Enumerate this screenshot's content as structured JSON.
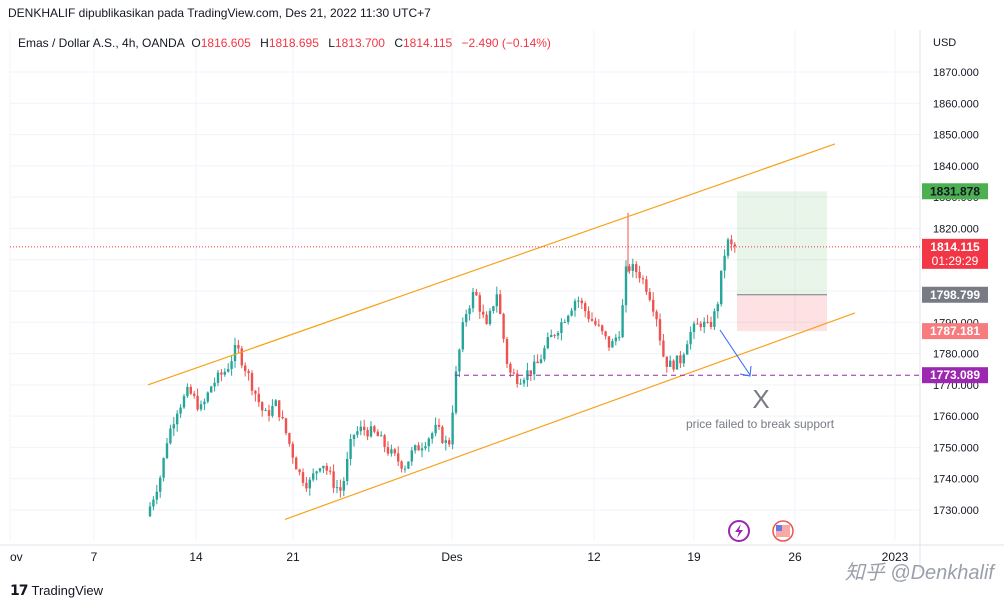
{
  "header": {
    "publisher_line": "DENKHALIF dipublikasikan pada TradingView.com, Des 21, 2022 11:30 UTC+7"
  },
  "symbol": {
    "name": "Emas / Dollar A.S., 4h, OANDA",
    "open_label": "O",
    "open": "1816.605",
    "high_label": "H",
    "high": "1818.695",
    "low_label": "L",
    "low": "1813.700",
    "close_label": "C",
    "close": "1814.115",
    "change": "−2.490 (−0.14%)"
  },
  "chart_data": {
    "type": "candlestick",
    "y_axis": {
      "currency": "USD",
      "range": [
        1724,
        1878
      ],
      "ticks": [
        1730,
        1740,
        1750,
        1760,
        1770,
        1780,
        1790,
        1800,
        1810,
        1820,
        1830,
        1840,
        1850,
        1860,
        1870
      ],
      "tick_labels": [
        "1730.000",
        "1740.000",
        "1750.000",
        "1760.000",
        "1770.000",
        "1780.000",
        "1790.000",
        "1800.000",
        "1810.000",
        "1820.000",
        "1830.000",
        "1840.000",
        "1850.000",
        "1860.000",
        "1870.000"
      ]
    },
    "x_axis": {
      "labels": [
        "ov",
        "7",
        "14",
        "21",
        "Des",
        "12",
        "19",
        "26",
        "2023"
      ]
    },
    "price_labels": [
      {
        "value": 1831.878,
        "text": "1831.878",
        "color": "#4caf50"
      },
      {
        "value": 1814.115,
        "text": "1814.115",
        "sub": "01:29:29",
        "color": "#f23645"
      },
      {
        "value": 1798.799,
        "text": "1798.799",
        "color": "#787b86"
      },
      {
        "value": 1787.181,
        "text": "1787.181",
        "color": "#f77c80"
      },
      {
        "value": 1773.089,
        "text": "1773.089",
        "color": "#9c27b0"
      }
    ],
    "candles_summary": {
      "start_price": 1728,
      "low_point": 1728,
      "high_point": 1825,
      "last_close": 1814.115
    },
    "channel_upper": [
      [
        148,
        1770
      ],
      [
        835,
        1847
      ]
    ],
    "channel_lower": [
      [
        285,
        1727
      ],
      [
        855,
        1793
      ]
    ],
    "annotation": {
      "text": "price failed to break support",
      "mark": "X"
    },
    "colors": {
      "up": "#26a69a",
      "down": "#ef5350",
      "channel": "#f7a21b",
      "target_zone": "#4caf50",
      "stop_zone": "#f23645"
    }
  },
  "footer": {
    "brand": "TradingView",
    "watermark": "知乎 @Denkhalif"
  }
}
